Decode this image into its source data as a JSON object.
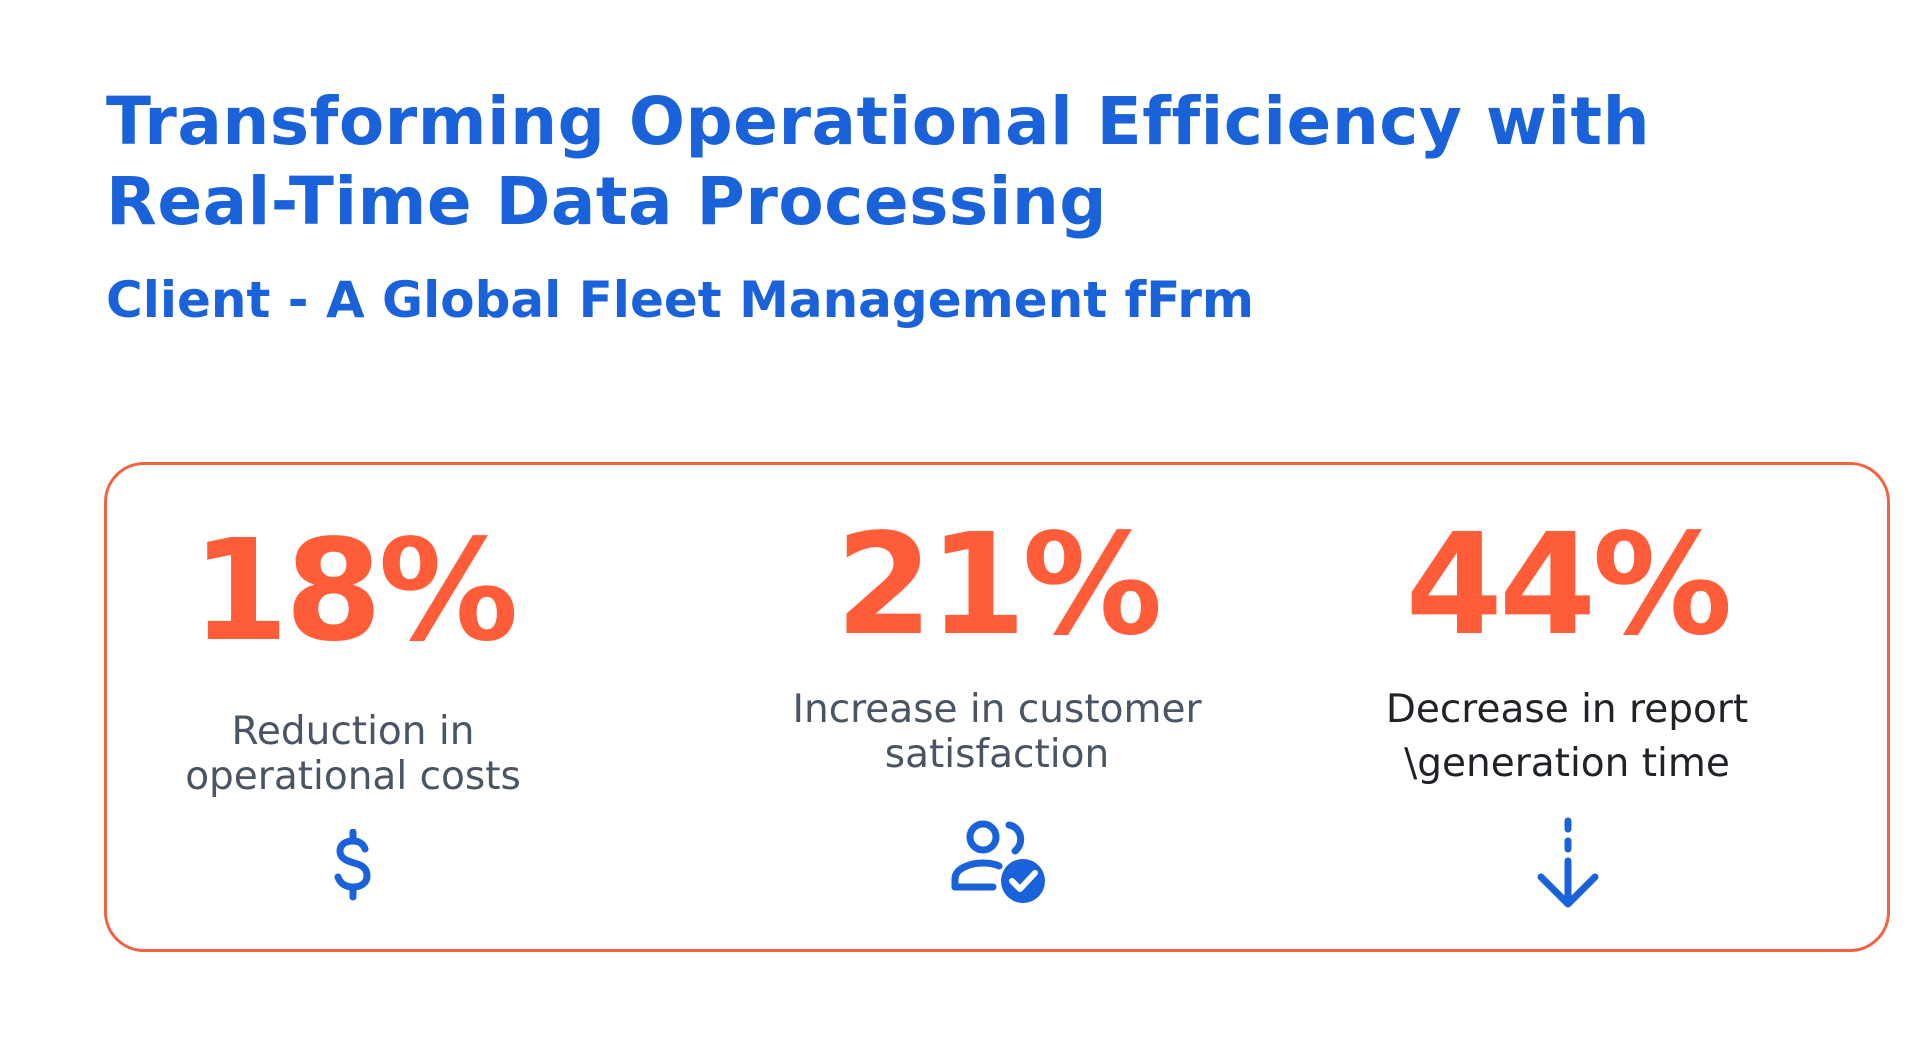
{
  "header": {
    "title_line1": "Transforming Operational Efficiency with",
    "title_line2": "Real-Time Data Processing",
    "subtitle": "Client - A Global Fleet Management fFrm"
  },
  "colors": {
    "title_blue": "#1a62d9",
    "stat_orange": "#ff5c39",
    "card_border": "#f2623f",
    "label_gray": "#4a5563"
  },
  "stats": [
    {
      "value": "18%",
      "label_line1": "Reduction in",
      "label_line2": "operational costs",
      "icon": "dollar-icon"
    },
    {
      "value": "21%",
      "label_line1": "Increase in customer",
      "label_line2": "satisfaction",
      "icon": "user-check-icon"
    },
    {
      "value": "44%",
      "label_line1": "Decrease in report",
      "label_line2": "\\generation time",
      "icon": "arrow-down-icon"
    }
  ]
}
